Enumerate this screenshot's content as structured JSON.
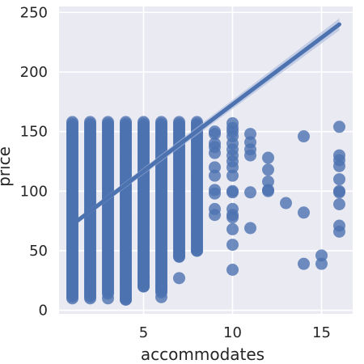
{
  "chart_data": {
    "type": "scatter",
    "title": "",
    "xlabel": "accommodates",
    "ylabel": "price",
    "xlim": [
      0.25,
      16.75
    ],
    "ylim": [
      -3,
      255
    ],
    "xticks": [
      5,
      10,
      15
    ],
    "yticks": [
      0,
      50,
      100,
      150,
      200,
      250
    ],
    "grid": true,
    "colors": {
      "background": "#eaeaf2",
      "grid": "#ffffff",
      "points": "#4c72b0",
      "line": "#4c72b0",
      "ci_band": "#a6b7dc"
    },
    "dense_columns": [
      {
        "x": 1,
        "ymin": 10,
        "ymax": 158
      },
      {
        "x": 2,
        "ymin": 10,
        "ymax": 158
      },
      {
        "x": 3,
        "ymin": 14,
        "ymax": 158
      },
      {
        "x": 4,
        "ymin": 9,
        "ymax": 158
      },
      {
        "x": 5,
        "ymin": 20,
        "ymax": 158
      },
      {
        "x": 6,
        "ymin": 15,
        "ymax": 158
      },
      {
        "x": 7,
        "ymin": 45,
        "ymax": 158
      },
      {
        "x": 8,
        "ymin": 50,
        "ymax": 158
      }
    ],
    "points": [
      {
        "x": 3,
        "y": 10
      },
      {
        "x": 4,
        "y": 9
      },
      {
        "x": 5,
        "y": 20
      },
      {
        "x": 5,
        "y": 28
      },
      {
        "x": 6,
        "y": 11
      },
      {
        "x": 6,
        "y": 20
      },
      {
        "x": 7,
        "y": 27
      },
      {
        "x": 7,
        "y": 45
      },
      {
        "x": 8,
        "y": 50
      },
      {
        "x": 9,
        "y": 150
      },
      {
        "x": 9,
        "y": 148
      },
      {
        "x": 9,
        "y": 140
      },
      {
        "x": 9,
        "y": 137
      },
      {
        "x": 9,
        "y": 132
      },
      {
        "x": 9,
        "y": 120
      },
      {
        "x": 9,
        "y": 113
      },
      {
        "x": 9,
        "y": 101
      },
      {
        "x": 9,
        "y": 98
      },
      {
        "x": 9,
        "y": 85
      },
      {
        "x": 9,
        "y": 80
      },
      {
        "x": 10,
        "y": 157
      },
      {
        "x": 10,
        "y": 153
      },
      {
        "x": 10,
        "y": 150
      },
      {
        "x": 10,
        "y": 146
      },
      {
        "x": 10,
        "y": 140
      },
      {
        "x": 10,
        "y": 135
      },
      {
        "x": 10,
        "y": 130
      },
      {
        "x": 10,
        "y": 125
      },
      {
        "x": 10,
        "y": 120
      },
      {
        "x": 10,
        "y": 113
      },
      {
        "x": 10,
        "y": 100
      },
      {
        "x": 10,
        "y": 99
      },
      {
        "x": 10,
        "y": 85
      },
      {
        "x": 10,
        "y": 80
      },
      {
        "x": 10,
        "y": 78
      },
      {
        "x": 10,
        "y": 68
      },
      {
        "x": 10,
        "y": 55
      },
      {
        "x": 10,
        "y": 34
      },
      {
        "x": 11,
        "y": 148
      },
      {
        "x": 11,
        "y": 141
      },
      {
        "x": 11,
        "y": 135
      },
      {
        "x": 11,
        "y": 130
      },
      {
        "x": 11,
        "y": 99
      },
      {
        "x": 11,
        "y": 69
      },
      {
        "x": 12,
        "y": 128
      },
      {
        "x": 12,
        "y": 118
      },
      {
        "x": 12,
        "y": 108
      },
      {
        "x": 12,
        "y": 101
      },
      {
        "x": 12,
        "y": 100
      },
      {
        "x": 13,
        "y": 90
      },
      {
        "x": 14,
        "y": 146
      },
      {
        "x": 14,
        "y": 82
      },
      {
        "x": 14,
        "y": 39
      },
      {
        "x": 15,
        "y": 46
      },
      {
        "x": 15,
        "y": 39
      },
      {
        "x": 16,
        "y": 154
      },
      {
        "x": 16,
        "y": 130
      },
      {
        "x": 16,
        "y": 126
      },
      {
        "x": 16,
        "y": 121
      },
      {
        "x": 16,
        "y": 110
      },
      {
        "x": 16,
        "y": 100
      },
      {
        "x": 16,
        "y": 99
      },
      {
        "x": 16,
        "y": 89
      },
      {
        "x": 16,
        "y": 71
      },
      {
        "x": 16,
        "y": 66
      }
    ],
    "regression_line": {
      "x": [
        1,
        16
      ],
      "y": [
        72,
        240
      ]
    },
    "confidence_band": {
      "x": [
        1,
        16
      ],
      "lower": [
        70,
        235
      ],
      "upper": [
        74,
        245
      ]
    }
  }
}
